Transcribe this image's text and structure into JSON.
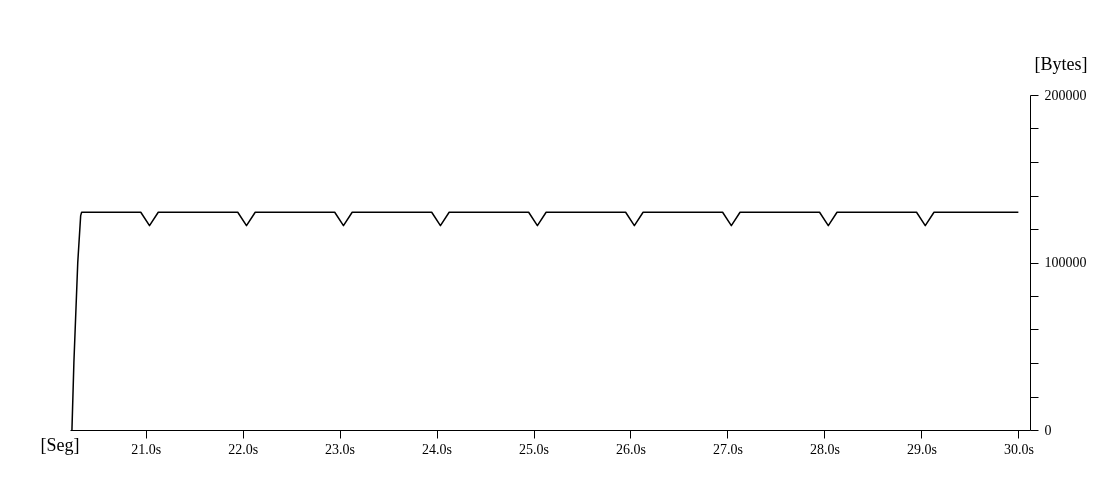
{
  "chart_data": {
    "type": "line",
    "xlabel": "[Seg]",
    "ylabel": "[Bytes]",
    "x": [
      20.24,
      20.26,
      20.3,
      20.33,
      20.34,
      20.95,
      21.04,
      21.13,
      21.95,
      22.04,
      22.13,
      22.95,
      23.04,
      23.13,
      23.95,
      24.04,
      24.13,
      24.95,
      25.04,
      25.13,
      25.95,
      26.04,
      26.13,
      26.95,
      27.04,
      27.13,
      27.95,
      28.04,
      28.13,
      28.95,
      29.04,
      29.13,
      30.0
    ],
    "series": [
      {
        "color": "#000000",
        "values": [
          0,
          40000,
          100000,
          128000,
          130000,
          130000,
          122000,
          130000,
          130000,
          122000,
          130000,
          130000,
          122000,
          130000,
          130000,
          122000,
          130000,
          130000,
          122000,
          130000,
          130000,
          122000,
          130000,
          130000,
          122000,
          130000,
          130000,
          122000,
          130000,
          130000,
          122000,
          130000,
          130000
        ]
      }
    ],
    "xlim": [
      20.22,
      30.12
    ],
    "xticks": [
      {
        "value": 21,
        "label": "21.0s"
      },
      {
        "value": 22,
        "label": "22.0s"
      },
      {
        "value": 23,
        "label": "23.0s"
      },
      {
        "value": 24,
        "label": "24.0s"
      },
      {
        "value": 25,
        "label": "25.0s"
      },
      {
        "value": 26,
        "label": "26.0s"
      },
      {
        "value": 27,
        "label": "27.0s"
      },
      {
        "value": 28,
        "label": "28.0s"
      },
      {
        "value": 29,
        "label": "29.0s"
      },
      {
        "value": 30,
        "label": "30.0s"
      }
    ],
    "ylim": [
      0,
      200000
    ],
    "yticks": [
      0,
      {
        "value": 20000,
        "label": null
      },
      {
        "value": 40000,
        "label": null
      },
      {
        "value": 60000,
        "label": null
      },
      {
        "value": 80000,
        "label": null
      },
      100000,
      {
        "value": 120000,
        "label": null
      },
      {
        "value": 140000,
        "label": null
      },
      {
        "value": 160000,
        "label": null
      },
      {
        "value": 180000,
        "label": null
      },
      200000
    ],
    "grid": false,
    "marker": "none",
    "line_style": "solid"
  }
}
